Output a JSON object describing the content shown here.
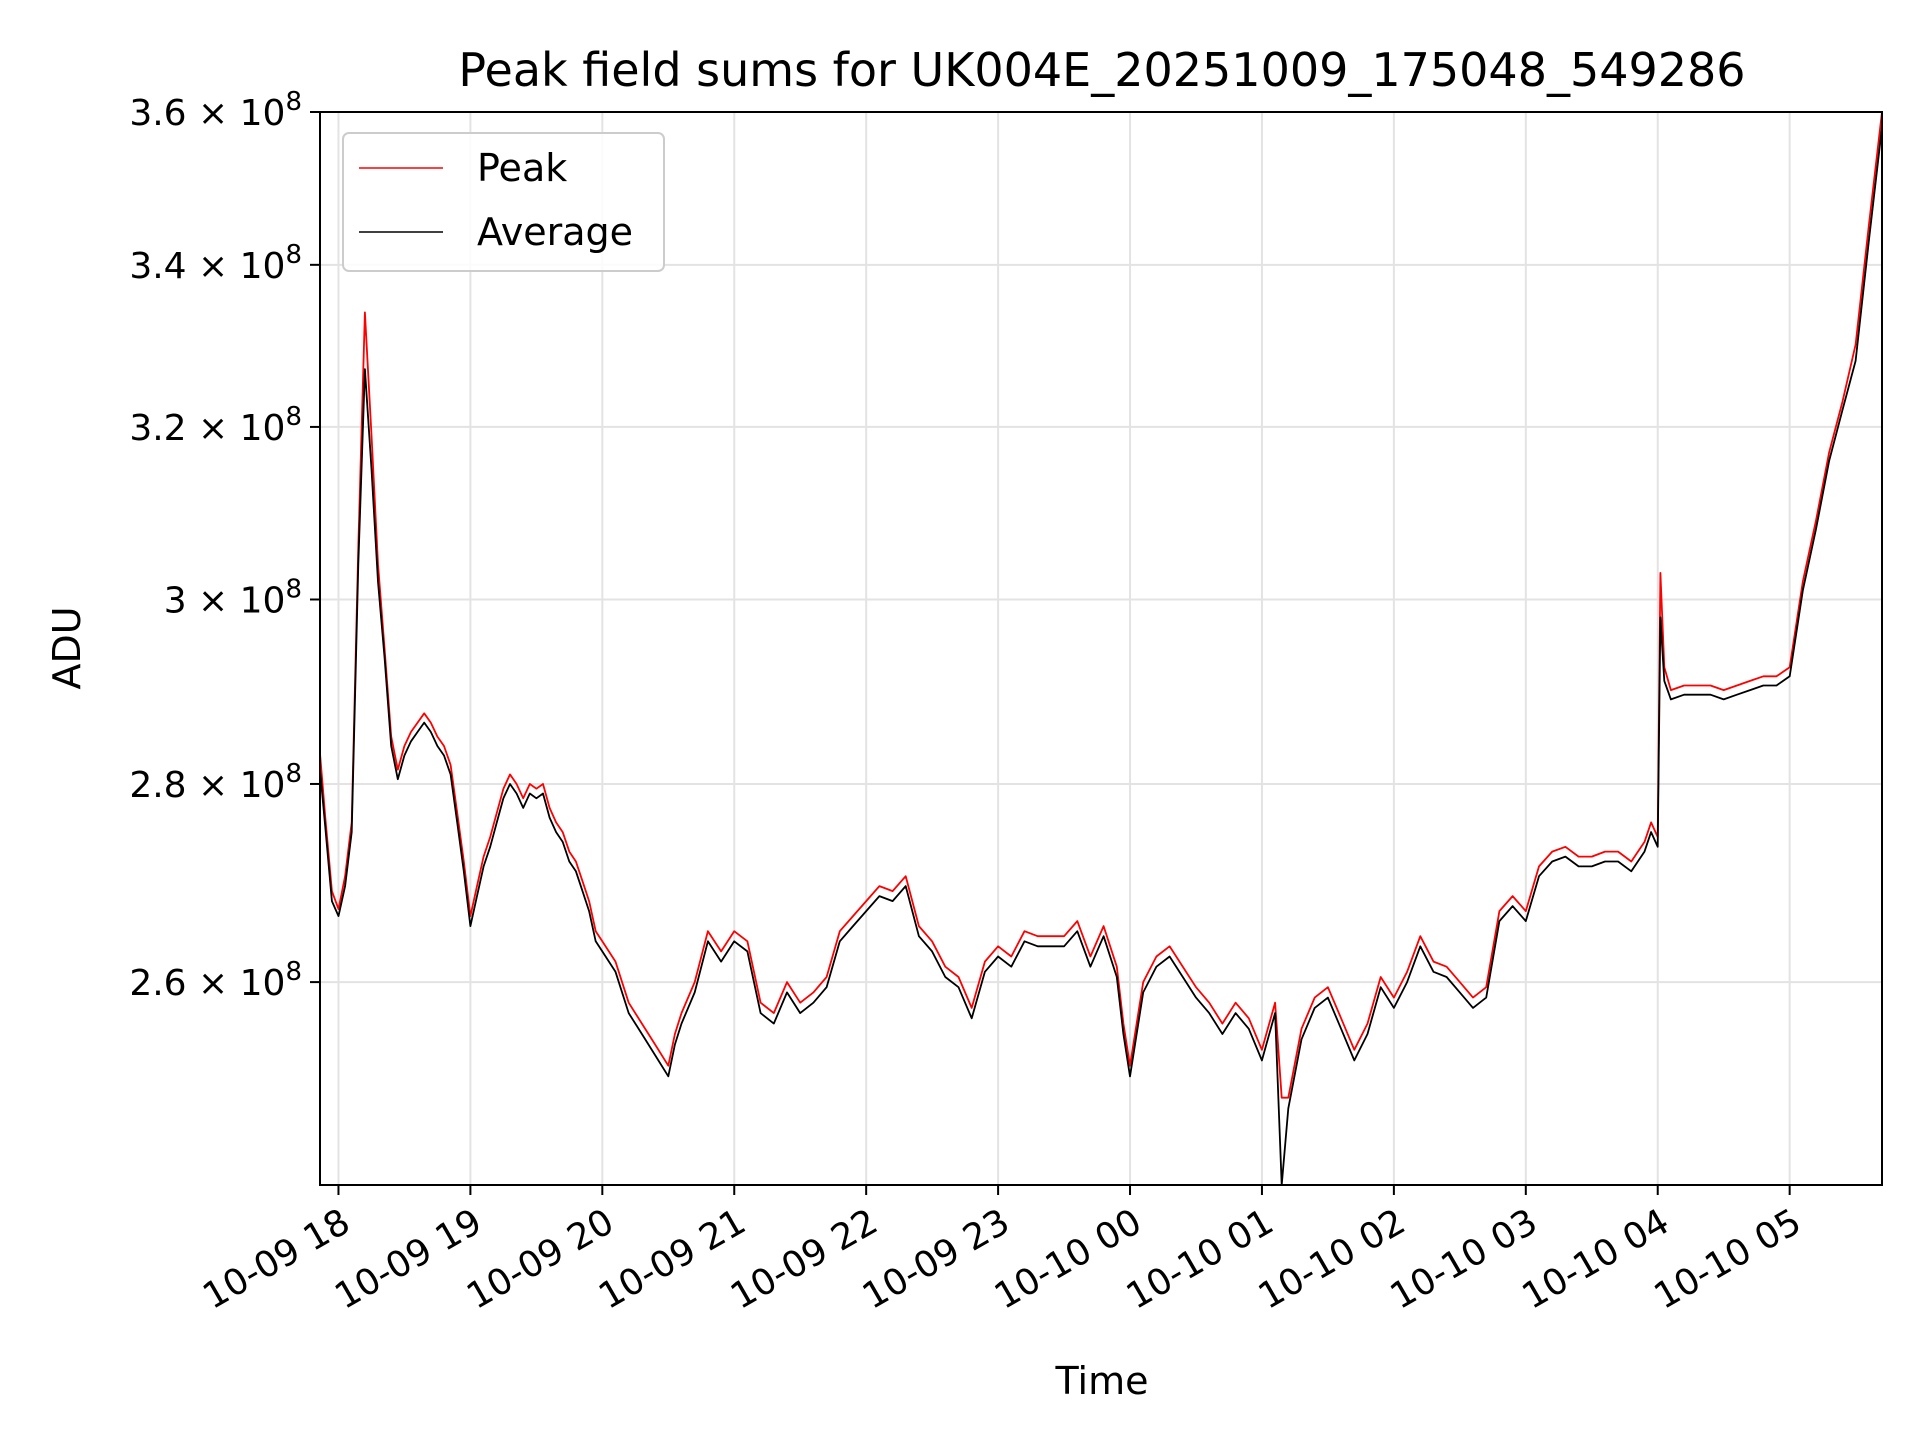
{
  "chart_data": {
    "type": "line",
    "title": "Peak field sums for UK004E_20251009_175048_549286",
    "xlabel": "Time",
    "ylabel": "ADU",
    "yscale": "log",
    "grid": true,
    "legend_position": "top-left",
    "x_unit": "hours since 2025-10-09 18:00",
    "xlim": [
      -0.14,
      11.7
    ],
    "ylim": [
      241000000,
      360000000
    ],
    "x_ticks": [
      {
        "value": 0,
        "label": "10-09 18"
      },
      {
        "value": 1,
        "label": "10-09 19"
      },
      {
        "value": 2,
        "label": "10-09 20"
      },
      {
        "value": 3,
        "label": "10-09 21"
      },
      {
        "value": 4,
        "label": "10-09 22"
      },
      {
        "value": 5,
        "label": "10-09 23"
      },
      {
        "value": 6,
        "label": "10-10 00"
      },
      {
        "value": 7,
        "label": "10-10 01"
      },
      {
        "value": 8,
        "label": "10-10 02"
      },
      {
        "value": 9,
        "label": "10-10 03"
      },
      {
        "value": 10,
        "label": "10-10 04"
      },
      {
        "value": 11,
        "label": "10-10 05"
      }
    ],
    "y_ticks": [
      {
        "value": 260000000,
        "mant": "2.6",
        "exp": "8"
      },
      {
        "value": 280000000,
        "mant": "2.8",
        "exp": "8"
      },
      {
        "value": 300000000,
        "mant": "3",
        "exp": "8"
      },
      {
        "value": 320000000,
        "mant": "3.2",
        "exp": "8"
      },
      {
        "value": 340000000,
        "mant": "3.4",
        "exp": "8"
      },
      {
        "value": 360000000,
        "mant": "3.6",
        "exp": "8"
      }
    ],
    "y_tick_times": "×",
    "y_tick_base": "10",
    "series": [
      {
        "name": "Peak",
        "color": "#ff0000",
        "x": [
          -0.14,
          -0.1,
          -0.05,
          0.0,
          0.05,
          0.1,
          0.15,
          0.2,
          0.25,
          0.3,
          0.35,
          0.4,
          0.45,
          0.5,
          0.55,
          0.6,
          0.65,
          0.7,
          0.75,
          0.8,
          0.85,
          0.9,
          0.95,
          1.0,
          1.05,
          1.1,
          1.15,
          1.2,
          1.25,
          1.3,
          1.35,
          1.4,
          1.45,
          1.5,
          1.55,
          1.6,
          1.65,
          1.7,
          1.75,
          1.8,
          1.85,
          1.9,
          1.95,
          2.0,
          2.1,
          2.2,
          2.3,
          2.4,
          2.5,
          2.55,
          2.6,
          2.7,
          2.8,
          2.9,
          3.0,
          3.1,
          3.2,
          3.3,
          3.4,
          3.5,
          3.6,
          3.7,
          3.8,
          3.9,
          4.0,
          4.1,
          4.2,
          4.3,
          4.4,
          4.5,
          4.6,
          4.7,
          4.8,
          4.9,
          5.0,
          5.1,
          5.2,
          5.3,
          5.4,
          5.5,
          5.6,
          5.7,
          5.8,
          5.9,
          5.95,
          6.0,
          6.1,
          6.2,
          6.3,
          6.4,
          6.5,
          6.6,
          6.7,
          6.8,
          6.9,
          7.0,
          7.1,
          7.15,
          7.2,
          7.3,
          7.4,
          7.5,
          7.6,
          7.7,
          7.8,
          7.9,
          8.0,
          8.1,
          8.2,
          8.3,
          8.4,
          8.5,
          8.6,
          8.7,
          8.8,
          8.9,
          9.0,
          9.1,
          9.2,
          9.3,
          9.4,
          9.5,
          9.6,
          9.7,
          9.8,
          9.9,
          9.95,
          10.0,
          10.02,
          10.05,
          10.1,
          10.2,
          10.3,
          10.4,
          10.5,
          10.6,
          10.7,
          10.8,
          10.9,
          10.95,
          11.0,
          11.1,
          11.2,
          11.3,
          11.4,
          11.5,
          11.6,
          11.7
        ],
        "values": [
          283200000,
          276500000,
          269000000,
          267200000,
          270500000,
          276000000,
          306000000,
          334000000,
          319000000,
          304000000,
          294500000,
          285000000,
          281500000,
          284000000,
          285500000,
          286500000,
          287500000,
          286500000,
          285000000,
          284000000,
          282000000,
          277000000,
          272000000,
          266500000,
          269500000,
          272500000,
          274500000,
          277000000,
          279500000,
          281000000,
          280000000,
          278500000,
          280000000,
          279500000,
          280000000,
          277500000,
          276000000,
          275000000,
          273000000,
          272000000,
          270000000,
          268000000,
          265000000,
          264000000,
          262000000,
          258000000,
          256000000,
          254000000,
          252000000,
          255000000,
          257000000,
          260000000,
          265000000,
          263000000,
          265000000,
          264000000,
          258000000,
          257000000,
          260000000,
          258000000,
          259000000,
          260500000,
          265000000,
          266500000,
          268000000,
          269500000,
          269000000,
          270500000,
          265500000,
          264000000,
          261500000,
          260500000,
          257500000,
          262000000,
          263500000,
          262500000,
          265000000,
          264500000,
          264500000,
          264500000,
          266000000,
          262500000,
          265500000,
          261500000,
          256000000,
          252000000,
          260000000,
          262500000,
          263500000,
          261500000,
          259500000,
          258000000,
          256000000,
          258000000,
          256500000,
          253500000,
          258000000,
          249000000,
          249000000,
          255500000,
          258500000,
          259500000,
          256500000,
          253500000,
          256000000,
          260500000,
          258500000,
          261000000,
          264500000,
          262000000,
          261500000,
          260000000,
          258500000,
          259500000,
          267000000,
          268500000,
          267000000,
          271500000,
          273000000,
          273500000,
          272500000,
          272500000,
          273000000,
          273000000,
          272000000,
          274000000,
          276000000,
          274500000,
          303000000,
          292500000,
          290000000,
          290500000,
          290500000,
          290500000,
          290000000,
          290500000,
          291000000,
          291500000,
          291500000,
          292000000,
          292500000,
          302000000,
          309000000,
          317000000,
          323000000,
          330000000,
          345000000,
          360000000
        ]
      },
      {
        "name": "Average",
        "color": "#000000",
        "x": [
          -0.14,
          -0.1,
          -0.05,
          0.0,
          0.05,
          0.1,
          0.15,
          0.2,
          0.25,
          0.3,
          0.35,
          0.4,
          0.45,
          0.5,
          0.55,
          0.6,
          0.65,
          0.7,
          0.75,
          0.8,
          0.85,
          0.9,
          0.95,
          1.0,
          1.05,
          1.1,
          1.15,
          1.2,
          1.25,
          1.3,
          1.35,
          1.4,
          1.45,
          1.5,
          1.55,
          1.6,
          1.65,
          1.7,
          1.75,
          1.8,
          1.85,
          1.9,
          1.95,
          2.0,
          2.1,
          2.2,
          2.3,
          2.4,
          2.5,
          2.55,
          2.6,
          2.7,
          2.8,
          2.9,
          3.0,
          3.1,
          3.2,
          3.3,
          3.4,
          3.5,
          3.6,
          3.7,
          3.8,
          3.9,
          4.0,
          4.1,
          4.2,
          4.3,
          4.4,
          4.5,
          4.6,
          4.7,
          4.8,
          4.9,
          5.0,
          5.1,
          5.2,
          5.3,
          5.4,
          5.5,
          5.6,
          5.7,
          5.8,
          5.9,
          5.95,
          6.0,
          6.1,
          6.2,
          6.3,
          6.4,
          6.5,
          6.6,
          6.7,
          6.8,
          6.9,
          7.0,
          7.1,
          7.15,
          7.2,
          7.3,
          7.4,
          7.5,
          7.6,
          7.7,
          7.8,
          7.9,
          8.0,
          8.1,
          8.2,
          8.3,
          8.4,
          8.5,
          8.6,
          8.7,
          8.8,
          8.9,
          9.0,
          9.1,
          9.2,
          9.3,
          9.4,
          9.5,
          9.6,
          9.7,
          9.8,
          9.9,
          9.95,
          10.0,
          10.02,
          10.05,
          10.1,
          10.2,
          10.3,
          10.4,
          10.5,
          10.6,
          10.7,
          10.8,
          10.9,
          10.95,
          11.0,
          11.1,
          11.2,
          11.3,
          11.4,
          11.5,
          11.6,
          11.7
        ],
        "values": [
          281500000,
          275500000,
          268000000,
          266500000,
          269500000,
          275000000,
          304000000,
          327000000,
          315000000,
          302000000,
          293500000,
          284000000,
          280500000,
          283000000,
          284500000,
          285500000,
          286500000,
          285500000,
          284000000,
          283000000,
          281000000,
          276000000,
          271000000,
          265500000,
          268500000,
          271500000,
          273500000,
          276000000,
          278500000,
          280000000,
          279000000,
          277500000,
          279000000,
          278500000,
          279000000,
          276500000,
          275000000,
          274000000,
          272000000,
          271000000,
          269000000,
          267000000,
          264000000,
          263000000,
          261000000,
          257000000,
          255000000,
          253000000,
          251000000,
          254000000,
          256000000,
          259000000,
          264000000,
          262000000,
          264000000,
          263000000,
          257000000,
          256000000,
          259000000,
          257000000,
          258000000,
          259500000,
          264000000,
          265500000,
          267000000,
          268500000,
          268000000,
          269500000,
          264500000,
          263000000,
          260500000,
          259500000,
          256500000,
          261000000,
          262500000,
          261500000,
          264000000,
          263500000,
          263500000,
          263500000,
          265000000,
          261500000,
          264500000,
          260500000,
          255000000,
          251000000,
          259000000,
          261500000,
          262500000,
          260500000,
          258500000,
          257000000,
          255000000,
          257000000,
          255500000,
          252500000,
          257000000,
          241000000,
          248000000,
          254500000,
          257500000,
          258500000,
          255500000,
          252500000,
          255000000,
          259500000,
          257500000,
          260000000,
          263500000,
          261000000,
          260500000,
          259000000,
          257500000,
          258500000,
          266000000,
          267500000,
          266000000,
          270500000,
          272000000,
          272500000,
          271500000,
          271500000,
          272000000,
          272000000,
          271000000,
          273000000,
          275000000,
          273500000,
          298000000,
          291000000,
          289000000,
          289500000,
          289500000,
          289500000,
          289000000,
          289500000,
          290000000,
          290500000,
          290500000,
          291000000,
          291500000,
          301000000,
          308000000,
          316000000,
          322000000,
          328000000,
          343000000,
          358000000
        ]
      }
    ]
  }
}
